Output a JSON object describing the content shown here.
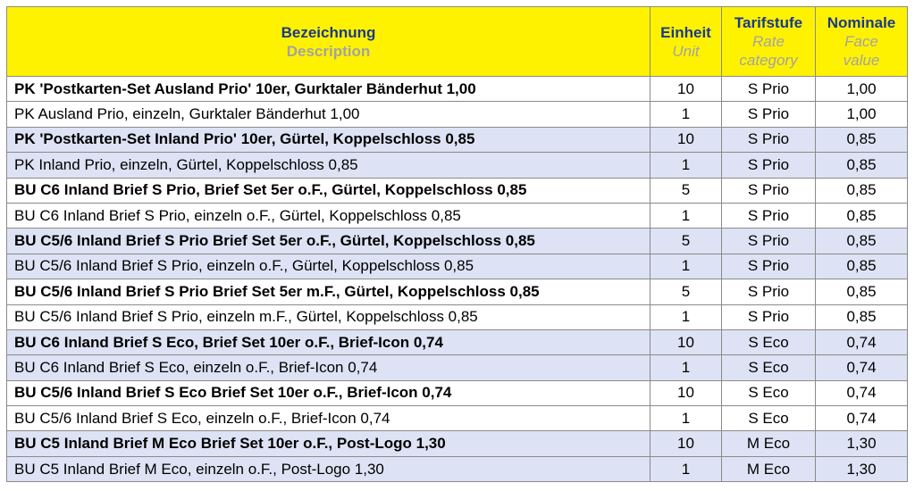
{
  "header": {
    "description_de": "Bezeichnung",
    "description_en": "Description",
    "unit_de": "Einheit",
    "unit_en": "Unit",
    "rate_de": "Tarifstufe",
    "rate_en_1": "Rate",
    "rate_en_2": "category",
    "face_de": "Nominale",
    "face_en_1": "Face",
    "face_en_2": "value"
  },
  "colors": {
    "header_bg": "#fff200",
    "header_text": "#1a3a8a",
    "header_subtext": "#a3a3a3",
    "row_shade": "#dde3f4"
  },
  "rows": [
    {
      "description": "PK 'Postkarten-Set Ausland Prio' 10er, Gurktaler Bänderhut 1,00",
      "unit": "10",
      "rate": "S Prio",
      "value": "1,00",
      "bold": true,
      "shade": false
    },
    {
      "description": "PK Ausland Prio, einzeln, Gurktaler Bänderhut 1,00",
      "unit": "1",
      "rate": "S Prio",
      "value": "1,00",
      "bold": false,
      "shade": false
    },
    {
      "description": "PK 'Postkarten-Set Inland Prio' 10er, Gürtel, Koppelschloss 0,85",
      "unit": "10",
      "rate": "S Prio",
      "value": "0,85",
      "bold": true,
      "shade": true
    },
    {
      "description": "PK Inland Prio, einzeln, Gürtel, Koppelschloss 0,85",
      "unit": "1",
      "rate": "S Prio",
      "value": "0,85",
      "bold": false,
      "shade": true
    },
    {
      "description": "BU C6 Inland Brief S Prio, Brief Set 5er o.F., Gürtel, Koppelschloss 0,85",
      "unit": "5",
      "rate": "S Prio",
      "value": "0,85",
      "bold": true,
      "shade": false
    },
    {
      "description": "BU C6 Inland Brief S Prio, einzeln o.F., Gürtel, Koppelschloss 0,85",
      "unit": "1",
      "rate": "S Prio",
      "value": "0,85",
      "bold": false,
      "shade": false
    },
    {
      "description": "BU C5/6 Inland Brief S Prio Brief Set 5er o.F., Gürtel, Koppelschloss 0,85",
      "unit": "5",
      "rate": "S Prio",
      "value": "0,85",
      "bold": true,
      "shade": true
    },
    {
      "description": "BU C5/6 Inland Brief S Prio, einzeln o.F., Gürtel, Koppelschloss 0,85",
      "unit": "1",
      "rate": "S Prio",
      "value": "0,85",
      "bold": false,
      "shade": true
    },
    {
      "description": "BU C5/6 Inland Brief S Prio Brief Set 5er m.F., Gürtel, Koppelschloss 0,85",
      "unit": "5",
      "rate": "S Prio",
      "value": "0,85",
      "bold": true,
      "shade": false
    },
    {
      "description": "BU C5/6 Inland Brief S Prio, einzeln m.F., Gürtel, Koppelschloss 0,85",
      "unit": "1",
      "rate": "S Prio",
      "value": "0,85",
      "bold": false,
      "shade": false
    },
    {
      "description": "BU C6 Inland Brief S Eco, Brief Set 10er o.F., Brief-Icon 0,74",
      "unit": "10",
      "rate": "S Eco",
      "value": "0,74",
      "bold": true,
      "shade": true
    },
    {
      "description": "BU C6 Inland Brief S Eco, einzeln o.F., Brief-Icon 0,74",
      "unit": "1",
      "rate": "S Eco",
      "value": "0,74",
      "bold": false,
      "shade": true
    },
    {
      "description": "BU C5/6 Inland Brief S Eco Brief Set 10er o.F., Brief-Icon 0,74",
      "unit": "10",
      "rate": "S Eco",
      "value": "0,74",
      "bold": true,
      "shade": false
    },
    {
      "description": "BU C5/6 Inland Brief S Eco, einzeln o.F., Brief-Icon 0,74",
      "unit": "1",
      "rate": "S Eco",
      "value": "0,74",
      "bold": false,
      "shade": false
    },
    {
      "description": "BU C5 Inland Brief M Eco Brief Set 10er o.F., Post-Logo 1,30",
      "unit": "10",
      "rate": "M Eco",
      "value": "1,30",
      "bold": true,
      "shade": true
    },
    {
      "description": "BU C5 Inland Brief M Eco, einzeln o.F., Post-Logo 1,30",
      "unit": "1",
      "rate": "M Eco",
      "value": "1,30",
      "bold": false,
      "shade": true
    }
  ]
}
